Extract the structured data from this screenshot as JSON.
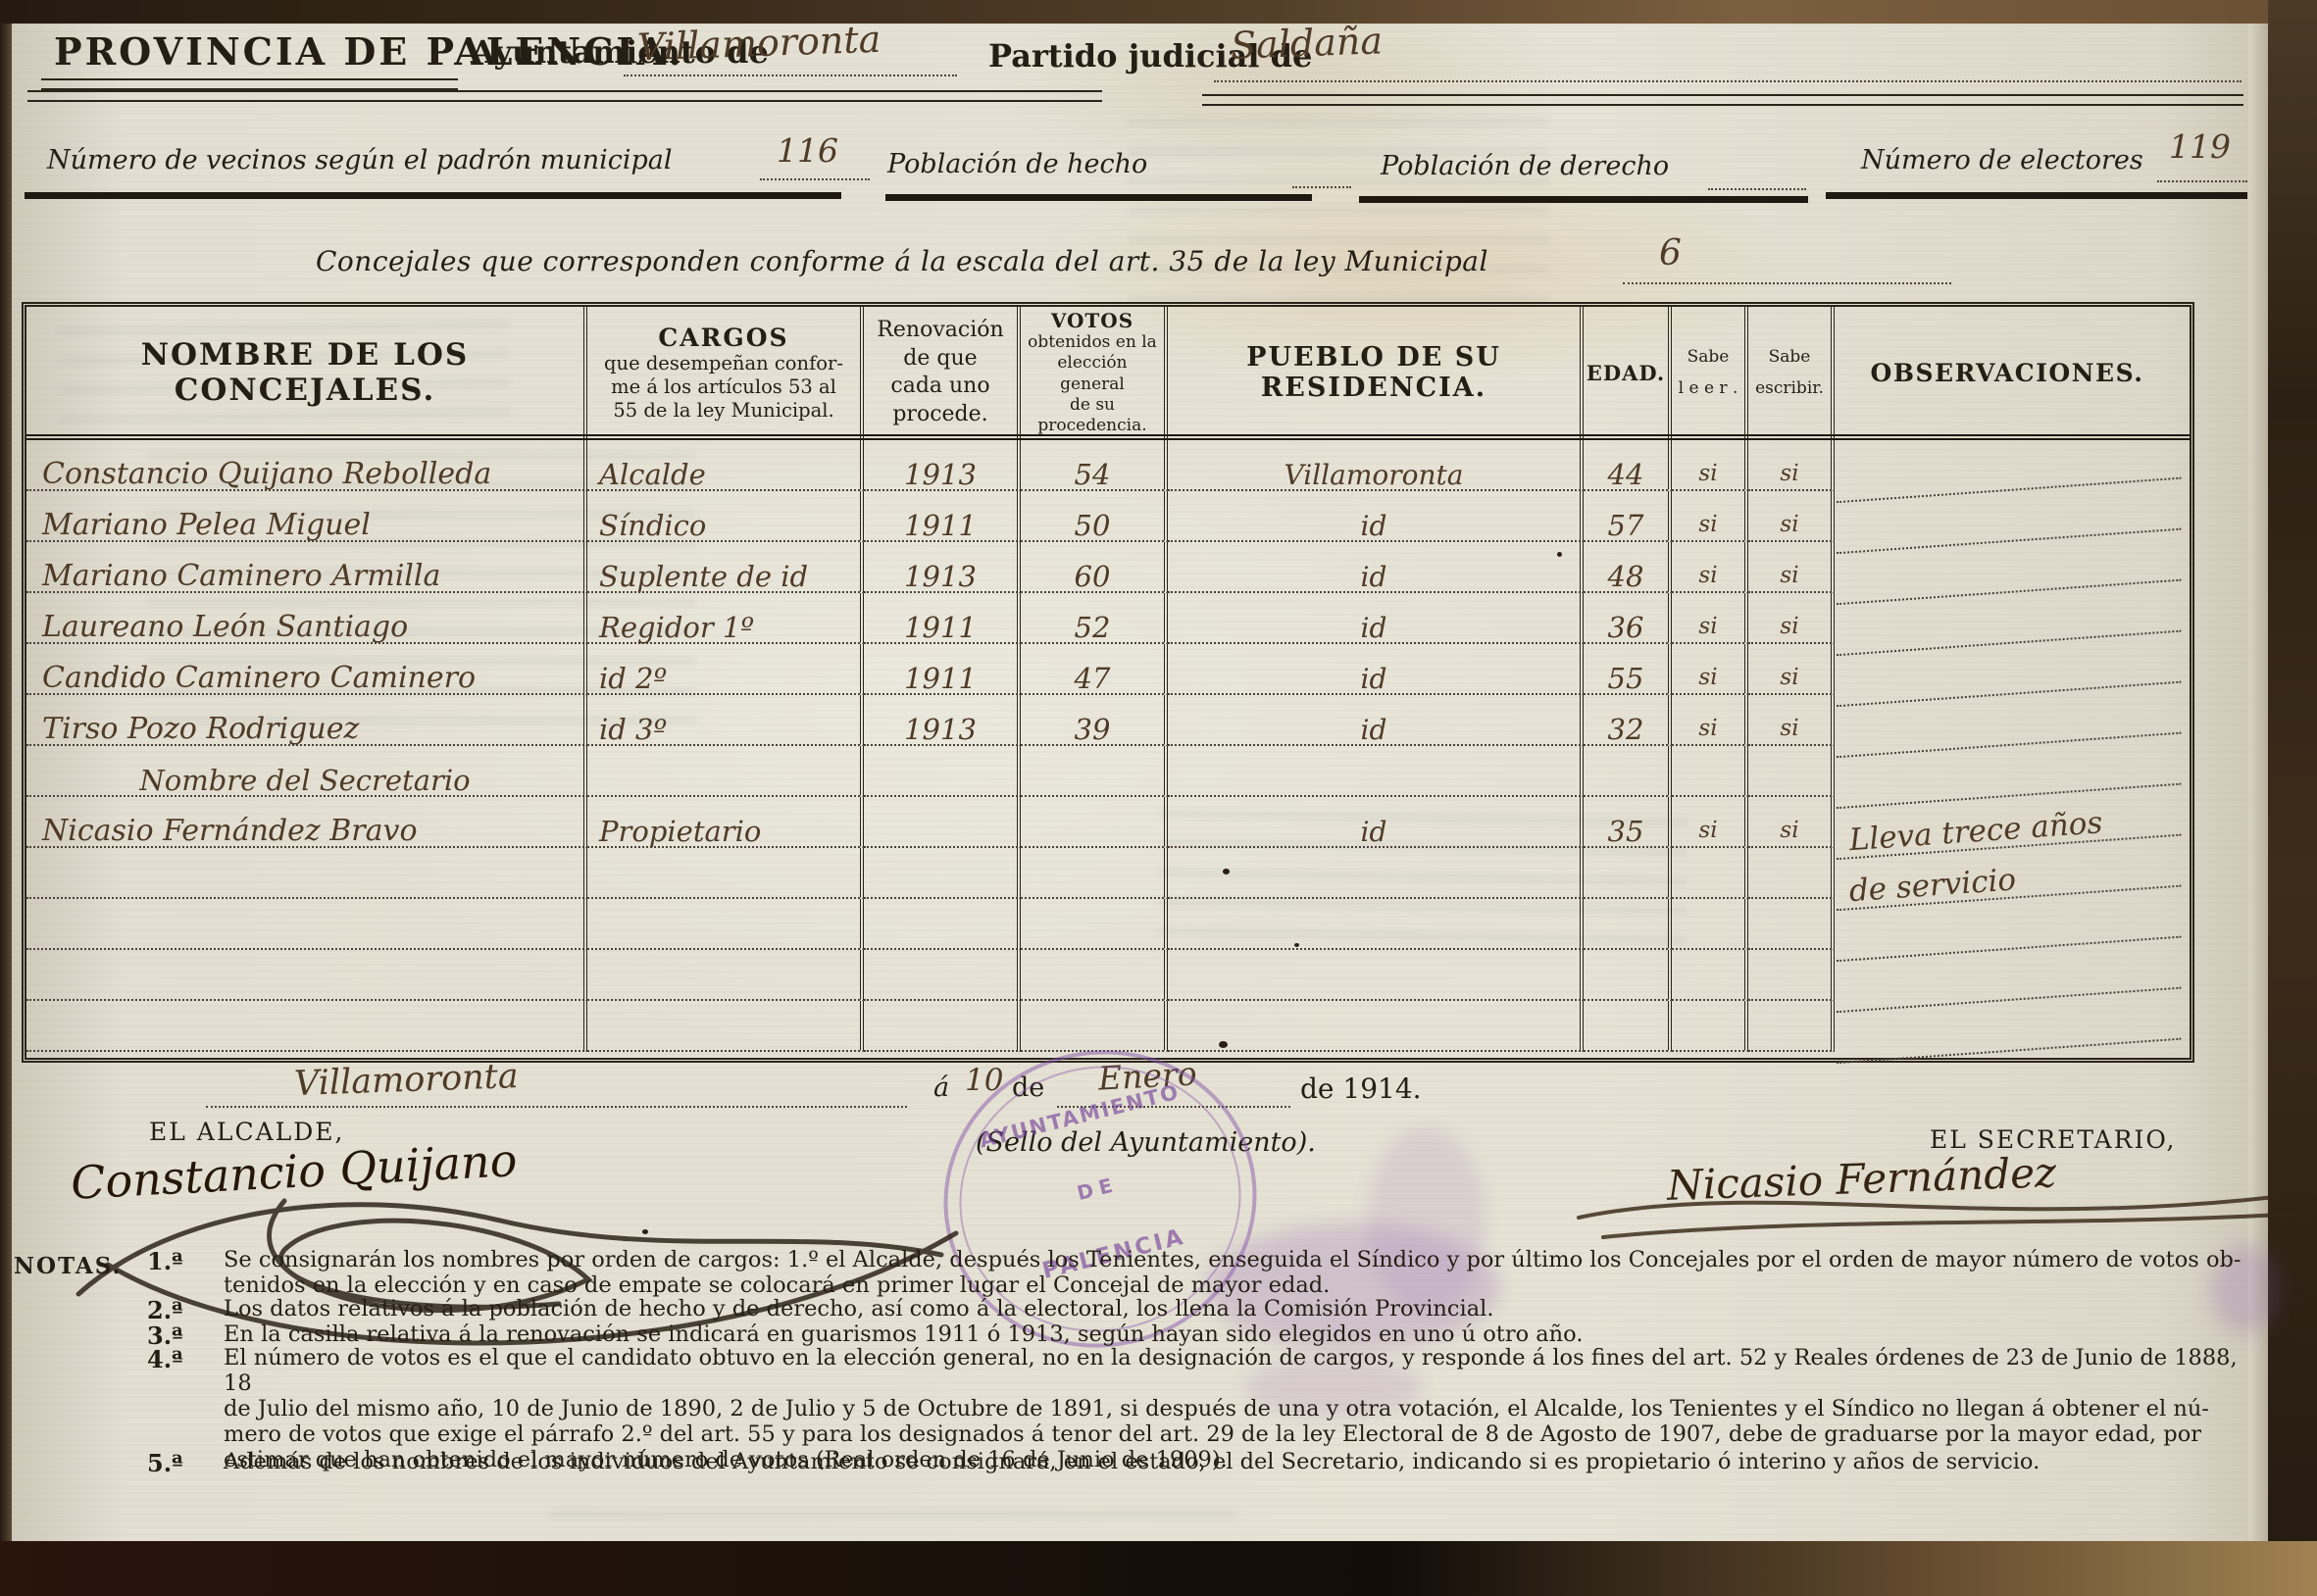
{
  "header": {
    "province": "PROVINCIA DE PALENCIA.",
    "ayuntamiento_label": "Ayuntamiento de",
    "ayuntamiento_value": "Villamoronta",
    "partido_label": "Partido judicial de",
    "partido_value": "Saldaña"
  },
  "stats": {
    "vecinos_label": "Número de vecinos según el padrón municipal",
    "vecinos_value": "116",
    "hecho_label": "Población de hecho",
    "derecho_label": "Población de derecho",
    "electores_label": "Número de electores",
    "electores_value": "119"
  },
  "concejales_line": {
    "label": "Concejales que corresponden conforme á la escala del art. 35 de la ley Municipal",
    "value": "6"
  },
  "table": {
    "headers": {
      "nombre": "NOMBRE DE LOS CONCEJALES.",
      "cargos_title": "CARGOS",
      "cargos_sub": "que desempeñan confor-\nme á los artículos 53 al\n55 de la ley Municipal.",
      "renovacion": "Renovación\nde que\ncada uno\nprocede.",
      "votos_title": "VOTOS",
      "votos_sub": "obtenidos en la\nelección general\nde su\nprocedencia.",
      "pueblo": "PUEBLO DE SU RESIDENCIA.",
      "edad": "EDAD.",
      "sabe_leer": "Sabe\nl e e r .",
      "sabe_escribir": "Sabe\nescribir.",
      "observaciones": "OBSERVACIONES."
    },
    "rows": [
      {
        "nombre": "Constancio Quijano Rebolleda",
        "cargo": "Alcalde",
        "renovacion": "1913",
        "votos": "54",
        "pueblo": "Villamoronta",
        "edad": "44",
        "lee": "si",
        "escribe": "si",
        "obs": ""
      },
      {
        "nombre": "Mariano Pelea Miguel",
        "cargo": "Síndico",
        "renovacion": "1911",
        "votos": "50",
        "pueblo": "id",
        "edad": "57",
        "lee": "si",
        "escribe": "si",
        "obs": ""
      },
      {
        "nombre": "Mariano Caminero Armilla",
        "cargo": "Suplente de id",
        "renovacion": "1913",
        "votos": "60",
        "pueblo": "id",
        "edad": "48",
        "lee": "si",
        "escribe": "si",
        "obs": ""
      },
      {
        "nombre": "Laureano León Santiago",
        "cargo": "Regidor 1º",
        "renovacion": "1911",
        "votos": "52",
        "pueblo": "id",
        "edad": "36",
        "lee": "si",
        "escribe": "si",
        "obs": ""
      },
      {
        "nombre": "Candido Caminero Caminero",
        "cargo": "id 2º",
        "renovacion": "1911",
        "votos": "47",
        "pueblo": "id",
        "edad": "55",
        "lee": "si",
        "escribe": "si",
        "obs": ""
      },
      {
        "nombre": "Tirso Pozo Rodriguez",
        "cargo": "id 3º",
        "renovacion": "1913",
        "votos": "39",
        "pueblo": "id",
        "edad": "32",
        "lee": "si",
        "escribe": "si",
        "obs": ""
      },
      {
        "nombre": "Nombre del Secretario",
        "center": true,
        "cargo": "",
        "renovacion": "",
        "votos": "",
        "pueblo": "",
        "edad": "",
        "lee": "",
        "escribe": "",
        "obs": ""
      },
      {
        "nombre": "Nicasio Fernández Bravo",
        "cargo": "Propietario",
        "renovacion": "",
        "votos": "",
        "pueblo": "id",
        "edad": "35",
        "lee": "si",
        "escribe": "si",
        "obs": "Lleva trece años"
      },
      {
        "nombre": "",
        "cargo": "",
        "renovacion": "",
        "votos": "",
        "pueblo": "",
        "edad": "",
        "lee": "",
        "escribe": "",
        "obs": "de servicio"
      },
      {
        "nombre": "",
        "cargo": "",
        "renovacion": "",
        "votos": "",
        "pueblo": "",
        "edad": "",
        "lee": "",
        "escribe": "",
        "obs": ""
      },
      {
        "nombre": "",
        "cargo": "",
        "renovacion": "",
        "votos": "",
        "pueblo": "",
        "edad": "",
        "lee": "",
        "escribe": "",
        "obs": ""
      },
      {
        "nombre": "",
        "cargo": "",
        "renovacion": "",
        "votos": "",
        "pueblo": "",
        "edad": "",
        "lee": "",
        "escribe": "",
        "obs": ""
      }
    ]
  },
  "dateline": {
    "place": "Villamoronta",
    "a": "á",
    "day": "10",
    "de1": "de",
    "month": "Enero",
    "year": "de 1914."
  },
  "signatures": {
    "alcalde_label": "EL ALCALDE,",
    "alcalde_signature": "Constancio Quijano",
    "sello_label": "(Sello del Ayuntamiento).",
    "secretario_label": "EL SECRETARIO,",
    "secretario_signature": "Nicasio Fernández",
    "stamp_color": "#804ea8",
    "stamp_line1": "AYUNTAMIENTO",
    "stamp_line2": "DE",
    "stamp_line3": "PALENCIA"
  },
  "notas": {
    "label": "NOTAS.",
    "items": [
      {
        "num": "1.ª",
        "text": "Se consignarán los nombres por orden de cargos: 1.º el Alcalde, después los Tenientes, enseguida el Síndico y por último los Concejales por el orden de mayor número de votos ob-\ntenidos en la elección y en caso de empate se colocará en primer lugar el Concejal de mayor edad."
      },
      {
        "num": "2.ª",
        "text": "Los datos relativos á la población de hecho y de derecho, así como á la electoral, los llena la Comisión Provincial."
      },
      {
        "num": "3.ª",
        "text": "En la casilla relativa á la renovación se indicará en guarismos 1911 ó 1913, según hayan sido elegidos en uno ú otro año."
      },
      {
        "num": "4.ª",
        "text": "El número de votos es el que el candidato obtuvo en la elección general, no en la designación de cargos, y responde á los fines del art. 52 y Reales órdenes de 23 de Junio de 1888, 18\nde Julio del mismo año, 10 de Junio de 1890, 2 de Julio y 5 de Octubre de 1891, si después de una y otra votación, el Alcalde, los Tenientes y el Síndico no llegan á obtener el nú-\nmero de votos que exige el párrafo 2.º del art. 55 y para los designados á tenor del art. 29 de la ley Electoral de 8 de Agosto de 1907, debe de graduarse por la mayor edad, por\nestimar que han obtenido el mayor número de votos (Real orden de 16 de Junio de 1909)."
      },
      {
        "num": "5.ª",
        "text": "Además de los nombres de los individuos del Ayuntamiento se consignará, en el estado, el del Secretario, indicando si es propietario ó interino y años de servicio."
      }
    ]
  }
}
